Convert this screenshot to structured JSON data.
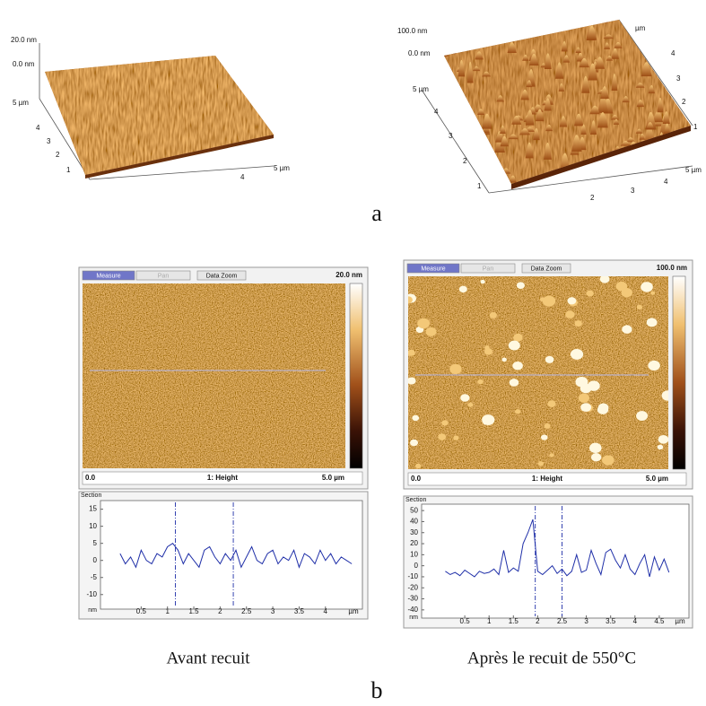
{
  "figure": {
    "label_a": "a",
    "label_b": "b",
    "captions": [
      "Avant recuit",
      "Après le recuit de 550°C"
    ]
  },
  "panels_3d": [
    {
      "z_top": "20.0 nm",
      "z_zero": "0.0 nm",
      "y_max": "5 µm",
      "y_ticks": [
        "4",
        "3",
        "2",
        "1"
      ],
      "x_ticks": [
        "4"
      ],
      "x_max": "5 µm"
    },
    {
      "z_top": "100.0 nm",
      "z_zero": "0.0 nm",
      "y_max": "5 µm",
      "y_ticks": [
        "4",
        "3",
        "2",
        "1"
      ],
      "x_ticks": [
        "2",
        "3",
        "4"
      ],
      "x_max": "5 µm",
      "back_ticks": [
        "µm",
        "4",
        "3",
        "2",
        "1"
      ]
    }
  ],
  "panels_2d": [
    {
      "buttons": [
        "Measure",
        "Pan",
        "Data Zoom"
      ],
      "scale": "20.0 nm",
      "x_start": "0.0",
      "channel": "1: Height",
      "x_end": "5.0 µm"
    },
    {
      "buttons": [
        "Measure",
        "Pan",
        "Data Zoom"
      ],
      "scale": "100.0 nm",
      "x_start": "0.0",
      "channel": "1: Height",
      "x_end": "5.0 µm"
    }
  ],
  "chart_data": [
    {
      "type": "line",
      "title": "Section",
      "y_label": "nm",
      "x_label": "µm",
      "x": [
        0.1,
        0.2,
        0.3,
        0.4,
        0.5,
        0.6,
        0.7,
        0.8,
        0.9,
        1.0,
        1.1,
        1.2,
        1.3,
        1.4,
        1.5,
        1.6,
        1.7,
        1.8,
        1.9,
        2.0,
        2.1,
        2.2,
        2.3,
        2.4,
        2.5,
        2.6,
        2.7,
        2.8,
        2.9,
        3.0,
        3.1,
        3.2,
        3.3,
        3.4,
        3.5,
        3.6,
        3.7,
        3.8,
        3.9,
        4.0,
        4.1,
        4.2,
        4.3,
        4.4,
        4.5
      ],
      "series": [
        {
          "color": "#1f2fa8",
          "values": [
            2,
            -1,
            1,
            -2,
            3,
            0,
            -1,
            2,
            1,
            4,
            5,
            3,
            -1,
            2,
            0,
            -2,
            3,
            4,
            1,
            -1,
            2,
            0,
            3,
            -2,
            1,
            4,
            0,
            -1,
            2,
            3,
            -1,
            1,
            0,
            3,
            -2,
            2,
            1,
            -1,
            3,
            0,
            2,
            -1,
            1,
            0,
            -1
          ]
        }
      ],
      "xlim": [
        0,
        4.6
      ],
      "ylim": [
        -14,
        17
      ],
      "xticks": [
        0.5,
        1,
        1.5,
        2,
        2.5,
        3,
        3.5,
        4
      ],
      "yticks": [
        15,
        10,
        5,
        0,
        -5,
        -10
      ],
      "cursor_x": [
        1.15,
        2.25
      ]
    },
    {
      "type": "line",
      "title": "Section",
      "y_label": "nm",
      "x_label": "µm",
      "x": [
        0.1,
        0.2,
        0.3,
        0.4,
        0.5,
        0.6,
        0.7,
        0.8,
        0.9,
        1.0,
        1.1,
        1.2,
        1.3,
        1.4,
        1.5,
        1.6,
        1.7,
        1.8,
        1.9,
        2.0,
        2.1,
        2.2,
        2.3,
        2.4,
        2.5,
        2.6,
        2.7,
        2.8,
        2.9,
        3.0,
        3.1,
        3.2,
        3.3,
        3.4,
        3.5,
        3.6,
        3.7,
        3.8,
        3.9,
        4.0,
        4.1,
        4.2,
        4.3,
        4.4,
        4.5,
        4.6,
        4.7
      ],
      "series": [
        {
          "color": "#1f2fa8",
          "values": [
            -5,
            -8,
            -6,
            -9,
            -4,
            -7,
            -10,
            -5,
            -7,
            -6,
            -3,
            -8,
            14,
            -6,
            -2,
            -5,
            20,
            30,
            42,
            -5,
            -8,
            -4,
            0,
            -7,
            -3,
            -9,
            -5,
            10,
            -6,
            -4,
            14,
            2,
            -8,
            12,
            15,
            5,
            -2,
            10,
            -3,
            -8,
            2,
            10,
            -10,
            8,
            -4,
            6,
            -6
          ]
        }
      ],
      "xlim": [
        0,
        5
      ],
      "ylim": [
        -45,
        55
      ],
      "xticks": [
        0.5,
        1,
        1.5,
        2,
        2.5,
        3,
        3.5,
        4,
        4.5
      ],
      "yticks": [
        50,
        40,
        30,
        20,
        10,
        0,
        -10,
        -20,
        -30,
        -40
      ],
      "cursor_x": [
        1.95,
        2.5
      ]
    }
  ]
}
